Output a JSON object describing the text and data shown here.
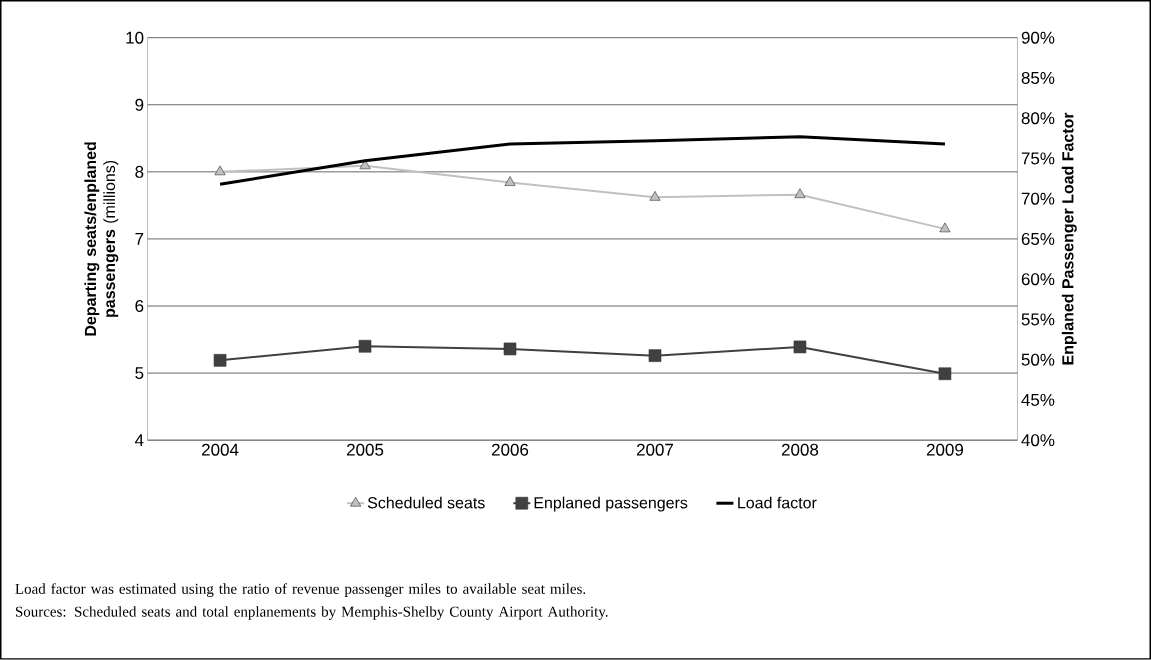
{
  "chart_data": {
    "type": "line",
    "categories": [
      "2004",
      "2005",
      "2006",
      "2007",
      "2008",
      "2009"
    ],
    "series": [
      {
        "name": "Scheduled seats",
        "color": "#c0c0c0",
        "marker": "triangle",
        "values": [
          8.0,
          8.09,
          7.84,
          7.62,
          7.66,
          7.15
        ]
      },
      {
        "name": "Enplaned passengers",
        "color": "#404040",
        "marker": "square",
        "values": [
          5.19,
          5.4,
          5.36,
          5.26,
          5.39,
          4.99
        ]
      },
      {
        "name": "Load factor",
        "color": "#000000",
        "marker": "none",
        "axis": "y2",
        "values": [
          71.8,
          74.7,
          76.8,
          77.2,
          77.7,
          76.8
        ]
      }
    ],
    "ylabel": "**Departing seats/enplaned passengers** (millions)",
    "y2label": "Enplaned Passenger Load Factor",
    "ylim": [
      4,
      10
    ],
    "yticks": [
      4,
      5,
      6,
      7,
      8,
      9,
      10
    ],
    "y2lim": [
      40,
      90
    ],
    "y2ticks": [
      {
        "value": 40,
        "label": "40%"
      },
      {
        "value": 45,
        "label": "45%"
      },
      {
        "value": 50,
        "label": "50%"
      },
      {
        "value": 55,
        "label": "55%"
      },
      {
        "value": 60,
        "label": "60%"
      },
      {
        "value": 65,
        "label": "65%"
      },
      {
        "value": 70,
        "label": "70%"
      },
      {
        "value": 75,
        "label": "75%"
      },
      {
        "value": 80,
        "label": "80%"
      },
      {
        "value": 85,
        "label": "85%"
      },
      {
        "value": 90,
        "label": "90%"
      }
    ],
    "grid": "y",
    "legend": "bottom",
    "annotations": [
      "Load factor was estimated using the ratio of revenue passenger miles to available seat miles.",
      "Sources: Scheduled seats and total enplanements by Memphis-Shelby County Airport Authority."
    ]
  }
}
